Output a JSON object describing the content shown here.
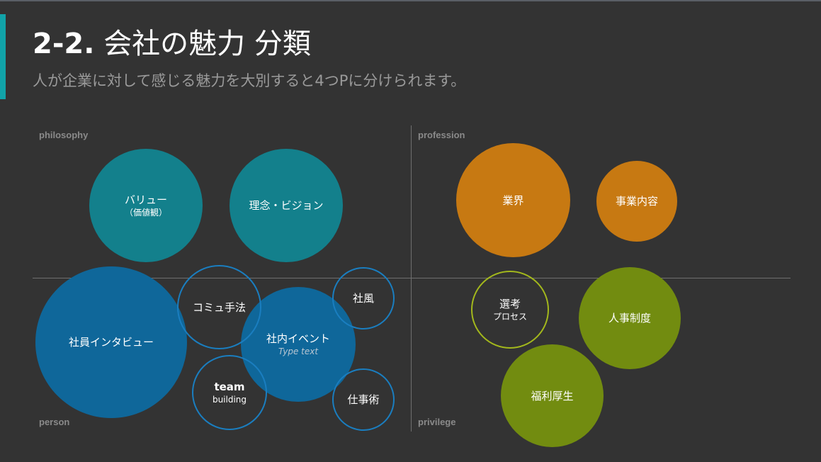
{
  "slide": {
    "title_number": "2-2.",
    "title_text": "会社の魅力 分類",
    "subtitle": "人が企業に対して感じる魅力を大別すると4つPに分けられます。"
  },
  "quadrants": {
    "top_left": "philosophy",
    "top_right": "profession",
    "bottom_left": "person",
    "bottom_right": "privilege"
  },
  "colors": {
    "background": "#333333",
    "accent": "#11a3a8",
    "teal": "#13808c",
    "orange": "#c77912",
    "blue": "#0f679a",
    "blue_outline": "#1a7ec0",
    "green": "#728c10",
    "green_outline": "#a3b81c"
  },
  "bubbles": {
    "value": {
      "label": "バリュー",
      "sub": "（価値観）"
    },
    "vision": {
      "label": "理念・ビジョン"
    },
    "industry": {
      "label": "業界"
    },
    "business": {
      "label": "事業内容"
    },
    "interview": {
      "label": "社員インタビュー"
    },
    "communication": {
      "label": "コミュ手法"
    },
    "event": {
      "label": "社内イベント",
      "sub": "Type text"
    },
    "culture": {
      "label": "社風"
    },
    "team": {
      "label": "team",
      "sub": "building"
    },
    "work_skill": {
      "label": "仕事術"
    },
    "selection": {
      "label": "選考",
      "sub": "プロセス"
    },
    "hr_system": {
      "label": "人事制度"
    },
    "welfare": {
      "label": "福利厚生"
    }
  }
}
